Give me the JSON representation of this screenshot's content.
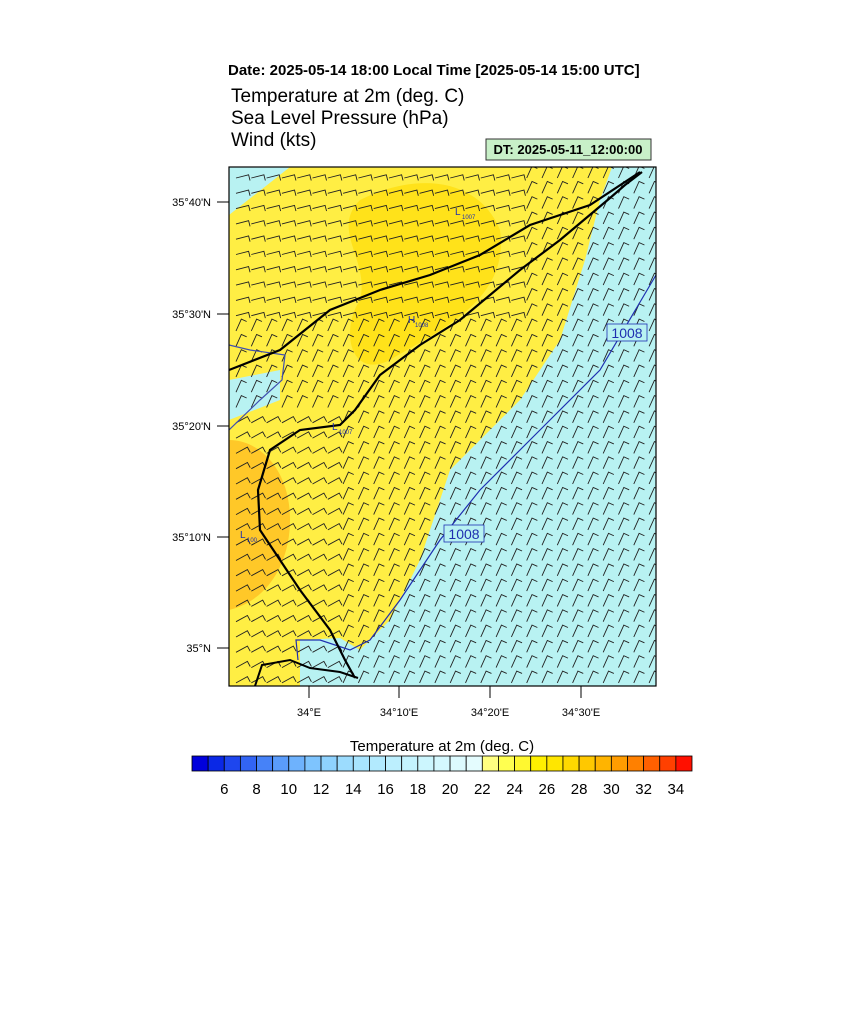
{
  "header": {
    "date_line": "Date: 2025-05-14  18:00 Local Time [2025-05-14  15:00 UTC]",
    "titles": [
      "Temperature at 2m   (deg. C)",
      "Sea Level Pressure   (hPa)",
      "Wind   (kts)"
    ],
    "dt_box": "DT: 2025-05-11_12:00:00"
  },
  "map": {
    "lat_labels": [
      "35°40'N",
      "35°30'N",
      "35°20'N",
      "35°10'N",
      "35°N"
    ],
    "lon_labels": [
      "34°E",
      "34°10'E",
      "34°20'E",
      "34°30'E"
    ],
    "contour_labels": [
      "1008",
      "1008"
    ],
    "pressure_centers": [
      {
        "letter": "L",
        "value": "1007"
      },
      {
        "letter": "H",
        "value": "1008"
      },
      {
        "letter": "L",
        "value": "1007"
      },
      {
        "letter": "L",
        "value": "100"
      }
    ]
  },
  "colorbar": {
    "title": "Temperature at 2m  (deg. C)",
    "labels": [
      6,
      8,
      10,
      12,
      14,
      16,
      18,
      20,
      22,
      24,
      26,
      28,
      30,
      32,
      34
    ],
    "colors": [
      "#0000dc",
      "#0a28e6",
      "#1e46ee",
      "#3264f4",
      "#4682f8",
      "#5a9cfb",
      "#6eb2fd",
      "#7ec4fe",
      "#8ed2fe",
      "#9cdcfe",
      "#a8e4fe",
      "#b2eafe",
      "#bceffe",
      "#c4f3fe",
      "#ccf6fe",
      "#d4f8fe",
      "#dcfafe",
      "#e4fcfe",
      "#ffff80",
      "#ffff50",
      "#fff830",
      "#fff000",
      "#ffe600",
      "#ffd800",
      "#ffc800",
      "#ffb400",
      "#ff9c00",
      "#ff8000",
      "#ff6000",
      "#ff4000",
      "#ff1000"
    ]
  }
}
